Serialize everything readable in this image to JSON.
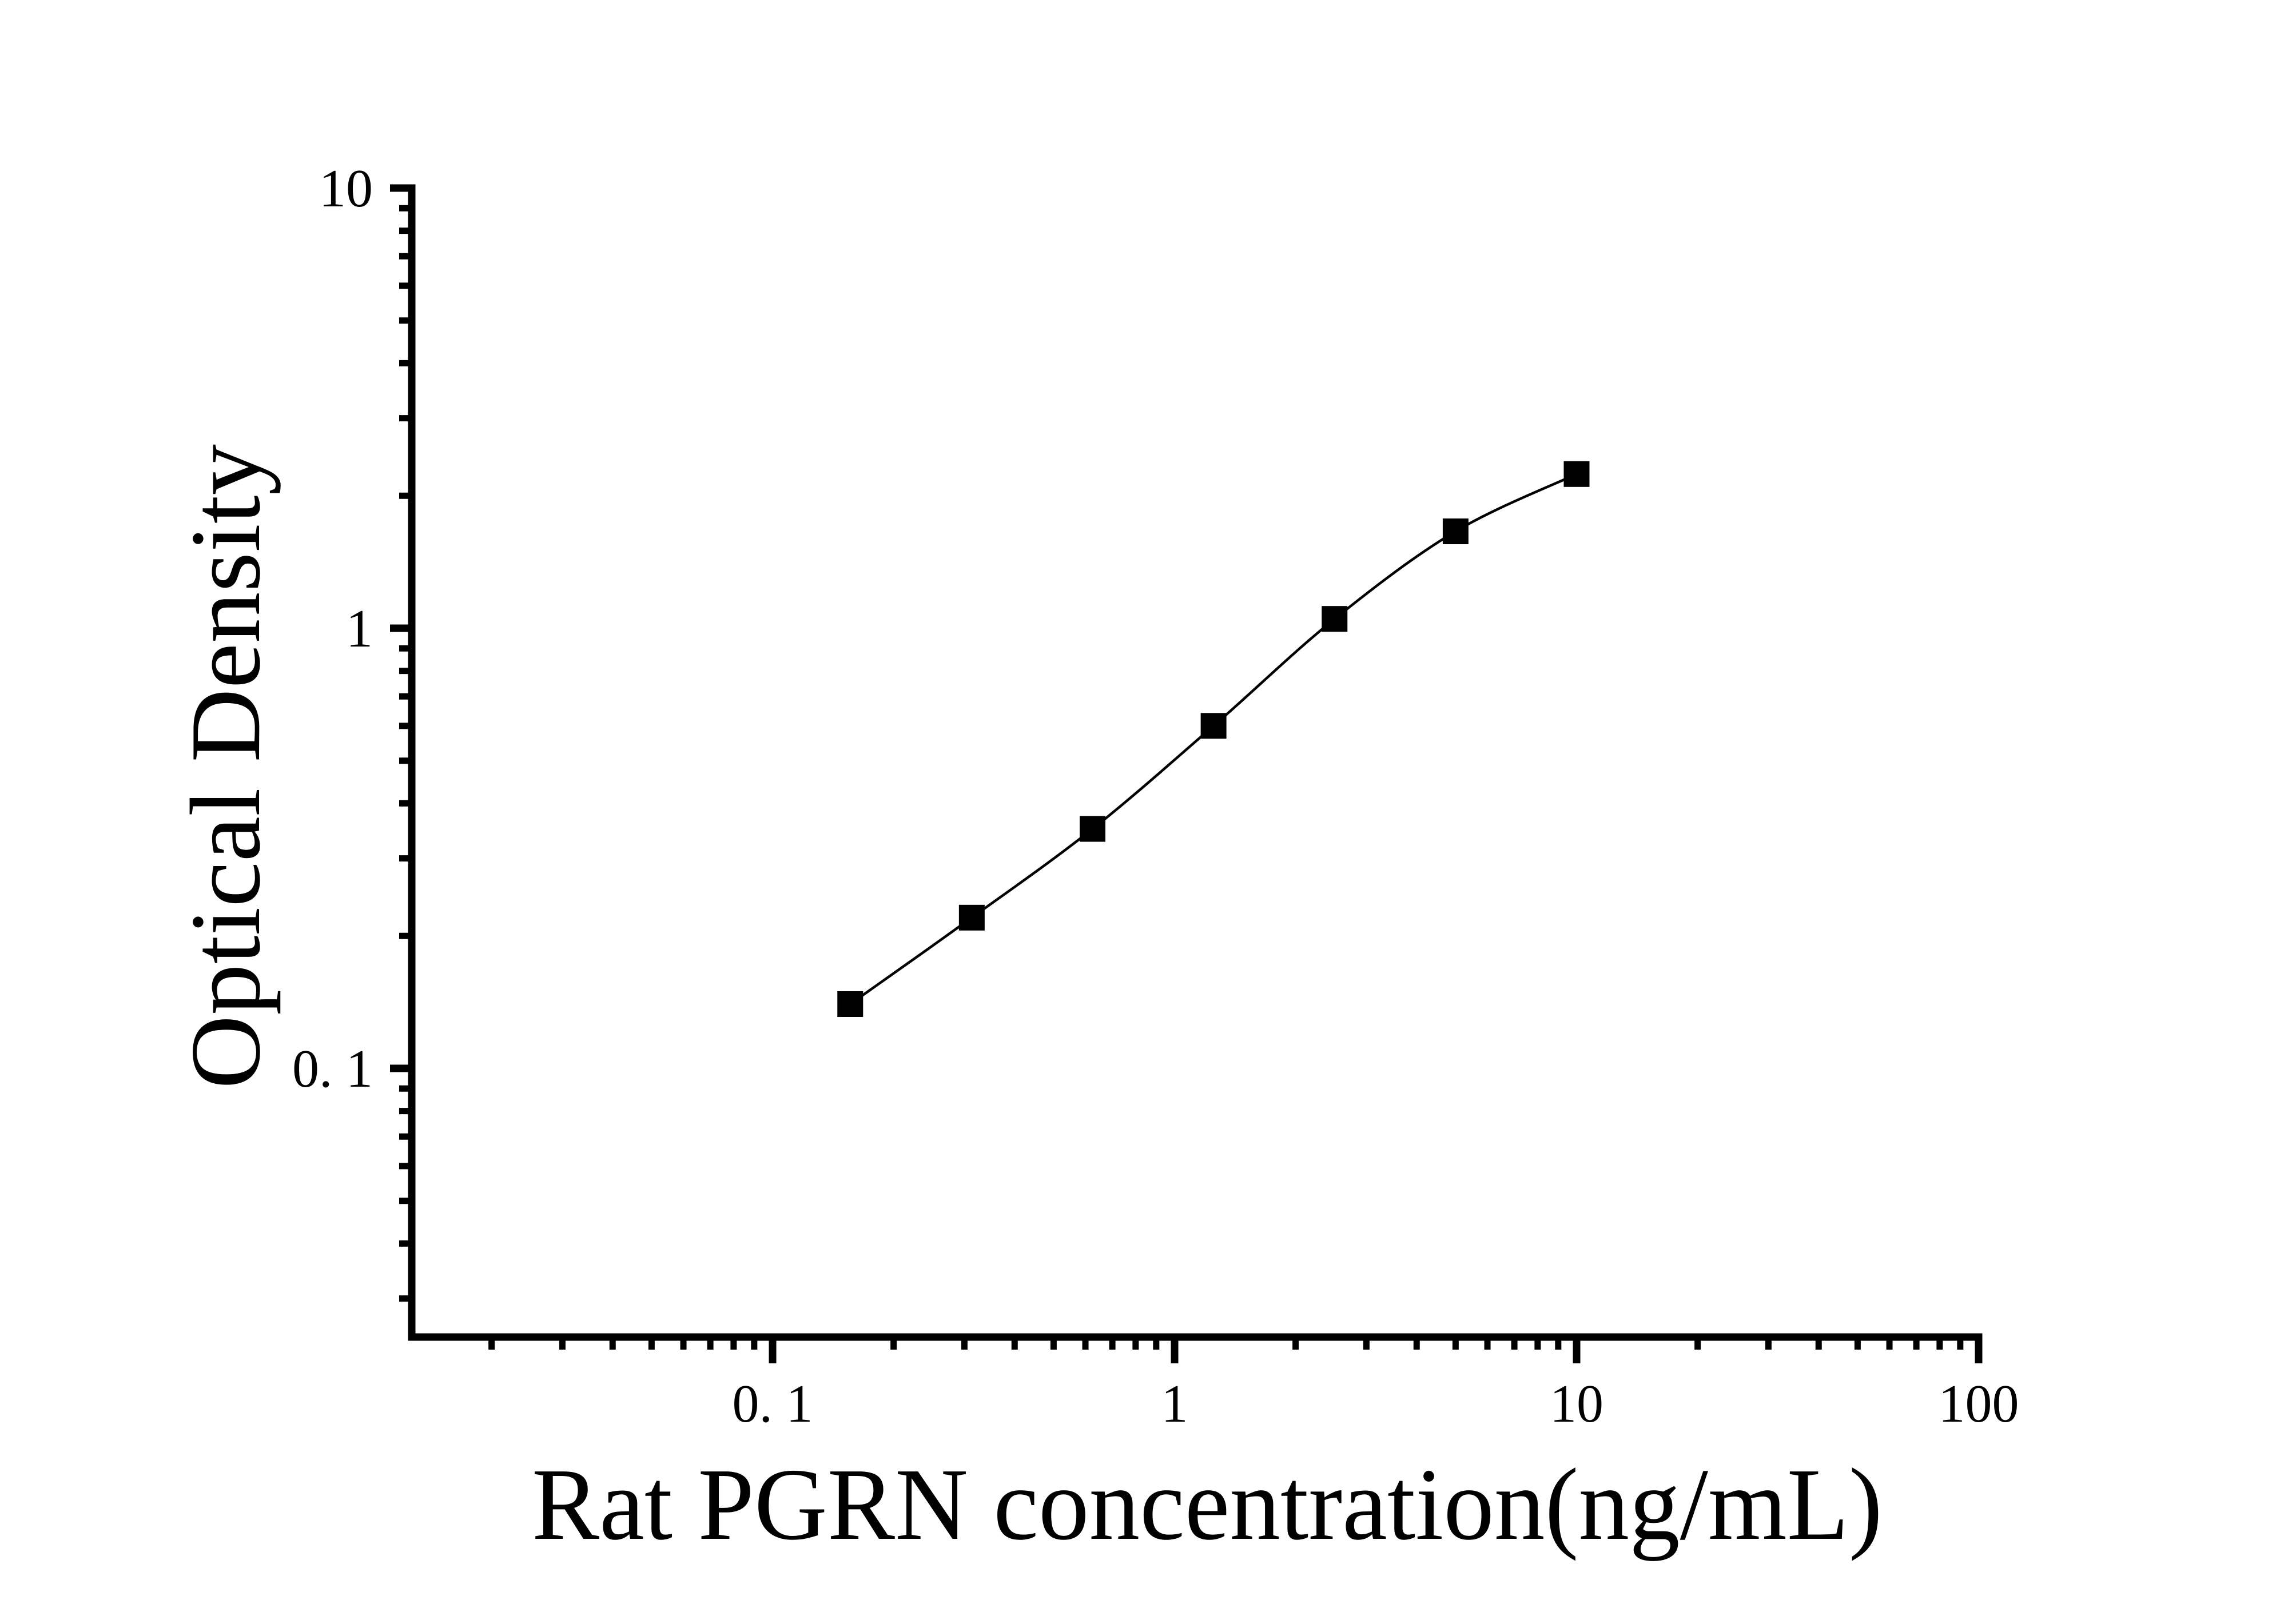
{
  "chart_data": {
    "type": "line",
    "title": "",
    "xlabel": "Rat PGRN concentration(ng/mL)",
    "ylabel": "Optical Density",
    "x_scale": "log",
    "y_scale": "log",
    "x": [
      0.156,
      0.313,
      0.625,
      1.25,
      2.5,
      5,
      10
    ],
    "series": [
      {
        "name": "Optical Density",
        "values": [
          0.14,
          0.22,
          0.35,
          0.6,
          1.05,
          1.66,
          2.24
        ]
      }
    ],
    "xlim": [
      0.0127,
      100
    ],
    "ylim": [
      0.024,
      10
    ],
    "x_major_ticks": [
      0.1,
      1,
      10,
      100
    ],
    "x_tick_labels": [
      "0. 1",
      "1",
      "10",
      "100"
    ],
    "y_major_ticks": [
      10,
      1,
      0.1
    ],
    "y_tick_labels": [
      "10",
      "1",
      "0. 1"
    ],
    "marker": "filled-square",
    "line_color": "#000000",
    "marker_color": "#000000",
    "axis_color": "#000000",
    "background_color": "#ffffff",
    "grid": "off",
    "legend": "none"
  }
}
